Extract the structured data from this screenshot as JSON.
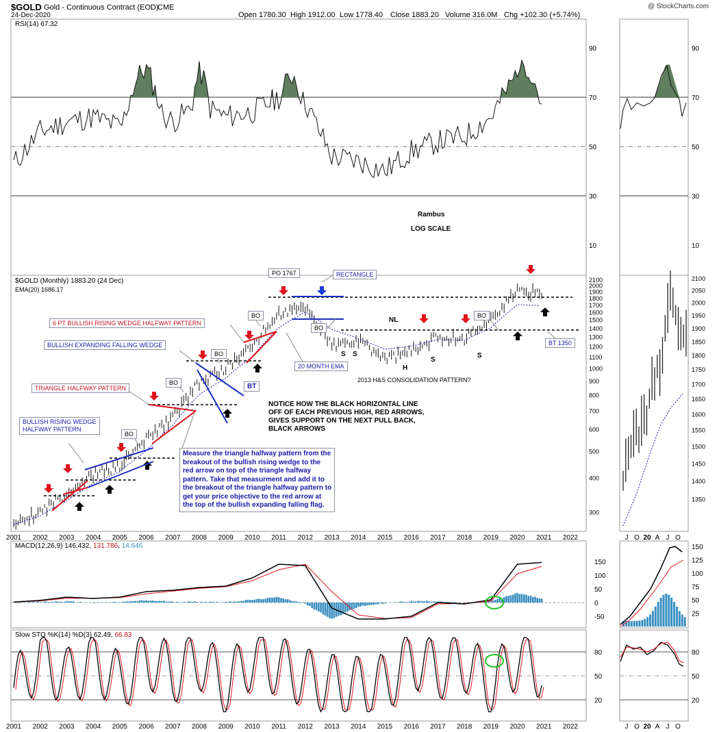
{
  "header": {
    "symbol": "$GOLD",
    "name": "Gold - Continuous Contract (EOD)",
    "exchange": "CME",
    "date": "24-Dec-2020",
    "watermark": "@ StockCharts.com",
    "open": "Open 1780.30",
    "high": "High 1912.00",
    "low": "Low 1778.40",
    "close": "Close 1883.20",
    "volume": "Volume 316.0M",
    "chg": "Chg +102.30 (+5.74%)"
  },
  "annotations": {
    "rambus": "Rambus",
    "log_scale": "LOG SCALE",
    "po": "PO 1767",
    "rectangle": "RECTANGLE",
    "nl": "NL",
    "ema_label": "20 MONTH EMA",
    "bt1350": "BT 1350",
    "hs_pattern": "2013 H&S CONSOLIDATION PATTERN?",
    "wedge6": "6 PT BULLISH RISING WEDGE HALFWAY PATTERN",
    "expanding": "BULLISH EXPANDING FALLING WEDGE",
    "triangle": "TRIANGLE HALFWAY PATTERN",
    "rising1": "BULLISH RISING WEDGE",
    "rising2": "HALFWAY PATTERN",
    "bo": "BO",
    "bt": "BT",
    "s": "S",
    "h": "H",
    "notice1": "NOTICE HOW THE  BLACK HORIZONTAL  LINE",
    "notice2": "OFF OF EACH PREVIOUS HIGH, RED ARROWS,",
    "notice3": "GIVES SUPPORT ON THE NEXT PULL BACK,",
    "notice4": "BLACK ARROWS",
    "measure1": "Measure the triangle halfway pattern from the",
    "measure2": "breakout of the bullish rising wedge to the",
    "measure3": "red arrow on top of the triangle halfway",
    "measure4": "pattern. Take that measurment and add it to",
    "measure5": "the breakout of the triangle halfway pattern to",
    "measure6": "get your price objective to the red arrow at",
    "measure7": "the top of the bullish expanding falling flag."
  },
  "colors": {
    "rsi_fill": "#5f7f5f",
    "ema": "#1a1aa8",
    "macd_signal": "#e0121b",
    "hist": "#3a8fc0",
    "arrow_red": "#e0121b",
    "arrow_blue": "#1a3bd6",
    "wedge_red": "#e0121b",
    "wedge_blue": "#1a2fc0",
    "circle": "#22c422"
  },
  "chart_data": [
    {
      "type": "line",
      "panel": "rsi",
      "legend": "RSI(14) 67.32",
      "ylim": [
        0,
        100
      ],
      "yticks": [
        "90",
        "70",
        "50",
        "30",
        "10"
      ],
      "overbought": 70,
      "oversold": 30,
      "x": [
        2001,
        2002,
        2003,
        2004,
        2005,
        2006,
        2007,
        2008,
        2009,
        2010,
        2011,
        2012,
        2013,
        2014,
        2015,
        2016,
        2017,
        2018,
        2019,
        2020,
        2020.9
      ],
      "values": [
        43,
        56,
        60,
        62,
        58,
        68,
        60,
        68,
        62,
        64,
        70,
        68,
        46,
        44,
        40,
        48,
        52,
        54,
        62,
        80,
        67.32
      ]
    },
    {
      "type": "bar",
      "panel": "price",
      "legend": "$GOLD (Monthly) 1883.20 (24 Dec)",
      "legend2": "EMA(20) 1686.17",
      "scale": "log",
      "ylim": [
        255,
        2150
      ],
      "yticks": [
        "2100",
        "2000",
        "1900",
        "1800",
        "1700",
        "1600",
        "1500",
        "1400",
        "1300",
        "1200",
        "1100",
        "1000",
        "900",
        "800",
        "700",
        "600",
        "500",
        "400",
        "300"
      ],
      "xticks": [
        "2001",
        "2002",
        "2003",
        "2004",
        "2005",
        "2006",
        "2007",
        "2008",
        "2009",
        "2010",
        "2011",
        "2012",
        "2013",
        "2014",
        "2015",
        "2016",
        "2017",
        "2018",
        "2019",
        "2020",
        "2021",
        "2022"
      ],
      "x": [
        2001,
        2002,
        2003,
        2004,
        2005,
        2006,
        2007,
        2008,
        2009,
        2010,
        2011,
        2012,
        2013,
        2014,
        2015,
        2016,
        2017,
        2018,
        2019,
        2020,
        2020.9
      ],
      "close": [
        265,
        300,
        350,
        410,
        440,
        550,
        660,
        880,
        1000,
        1200,
        1570,
        1660,
        1200,
        1250,
        1080,
        1150,
        1300,
        1280,
        1510,
        1890,
        1883.2
      ],
      "ema": [
        270,
        290,
        330,
        380,
        420,
        500,
        620,
        800,
        920,
        1100,
        1400,
        1600,
        1380,
        1280,
        1170,
        1200,
        1270,
        1260,
        1400,
        1700,
        1686.17
      ]
    },
    {
      "type": "line",
      "panel": "macd",
      "legend": "MACD(12,26,9)",
      "macd_value": "146.432",
      "signal_value": "131.786",
      "hist_value": "14.646",
      "yticks": [
        "150",
        "100",
        "50",
        "0",
        "-50"
      ],
      "x": [
        2001,
        2002,
        2003,
        2004,
        2005,
        2006,
        2007,
        2008,
        2009,
        2010,
        2011,
        2012,
        2013,
        2014,
        2015,
        2016,
        2017,
        2018,
        2019,
        2020,
        2020.9
      ],
      "macd": [
        2,
        8,
        20,
        15,
        20,
        40,
        45,
        55,
        60,
        90,
        140,
        135,
        -20,
        -60,
        -60,
        -50,
        0,
        -5,
        10,
        140,
        146.4
      ],
      "signal": [
        2,
        6,
        16,
        16,
        18,
        32,
        42,
        52,
        58,
        80,
        120,
        140,
        40,
        -45,
        -58,
        -55,
        -5,
        -3,
        5,
        105,
        131.8
      ],
      "histogram": [
        0,
        2,
        4,
        -1,
        2,
        8,
        3,
        3,
        2,
        10,
        20,
        -5,
        -60,
        -15,
        -2,
        5,
        5,
        -2,
        5,
        35,
        14.6
      ]
    },
    {
      "type": "line",
      "panel": "sto",
      "legend": "Slow STO %K(14) %D(3)",
      "k_value": "62.49",
      "d_value": "66.83",
      "yticks": [
        "80",
        "50",
        "20"
      ],
      "x": [
        2001,
        2002,
        2003,
        2004,
        2005,
        2006,
        2007,
        2008,
        2009,
        2010,
        2011,
        2012,
        2013,
        2014,
        2015,
        2016,
        2017,
        2018,
        2019,
        2020,
        2020.9
      ],
      "k": [
        15,
        90,
        40,
        85,
        30,
        90,
        50,
        85,
        20,
        90,
        70,
        40,
        25,
        20,
        25,
        90,
        60,
        80,
        20,
        90,
        62.49
      ],
      "d": [
        20,
        80,
        45,
        80,
        35,
        85,
        55,
        80,
        25,
        85,
        72,
        45,
        28,
        22,
        28,
        80,
        62,
        78,
        25,
        88,
        66.83
      ]
    },
    {
      "type": "bar",
      "panel": "price-daily",
      "scale": "log",
      "ylim": [
        1300,
        2120
      ],
      "yticks": [
        "2100",
        "2050",
        "2000",
        "1950",
        "1900",
        "1850",
        "1800",
        "1750",
        "1700",
        "1650",
        "1600",
        "1550",
        "1500",
        "1450",
        "1400",
        "1350"
      ],
      "xticks": [
        "J",
        "O",
        "20",
        "A",
        "J",
        "O"
      ],
      "x": [
        1,
        2,
        3,
        4,
        5,
        6,
        7,
        8,
        9,
        10,
        11,
        12,
        13,
        14,
        15,
        16,
        17,
        18,
        19,
        20,
        21,
        22,
        23,
        24,
        25
      ],
      "close": [
        1400,
        1460,
        1480,
        1500,
        1540,
        1560,
        1520,
        1580,
        1600,
        1580,
        1650,
        1720,
        1700,
        1760,
        1740,
        1800,
        1900,
        1980,
        2050,
        2000,
        1950,
        1900,
        1880,
        1870,
        1883
      ]
    }
  ]
}
